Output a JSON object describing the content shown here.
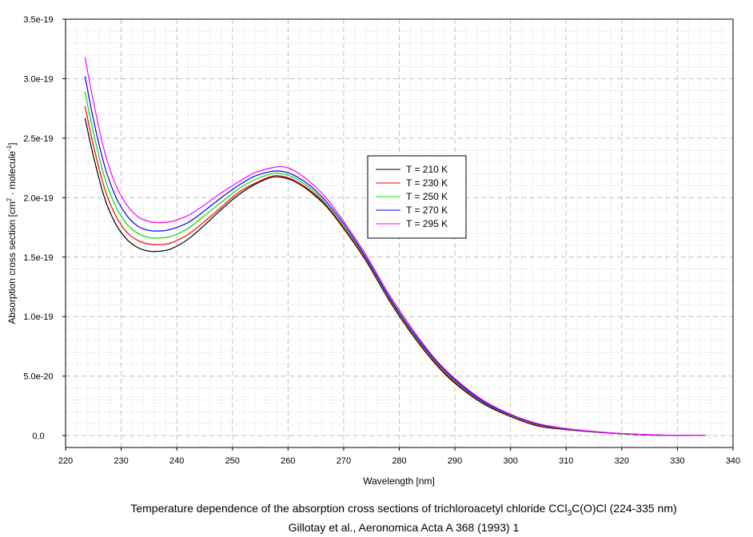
{
  "chart_data": {
    "type": "line",
    "title": "Temperature dependence of the absorption cross sections of trichloroacetyl chloride CCl3C(O)Cl (224-335 nm)",
    "title_parts": {
      "pre": "Temperature dependence of the absorption cross sections of trichloroacetyl chloride CCl",
      "sub": "3",
      "post": "C(O)Cl (224-335 nm)"
    },
    "subtitle": "Gillotay et al., Aeronomica Acta A 368 (1993) 1",
    "xlabel": "Wavelength [nm]",
    "ylabel": "Absorption cross section [cm2 · molecule-1]",
    "ylabel_parts": {
      "a": "Absorption cross section [cm",
      "sup1": "2",
      "b": " · molecule",
      "sup2": "-1",
      "c": "]"
    },
    "xlim": [
      220,
      340
    ],
    "ylim": [
      -1e-20,
      3.5e-19
    ],
    "xticks": [
      "220",
      "230",
      "240",
      "250",
      "260",
      "270",
      "280",
      "290",
      "300",
      "310",
      "320",
      "330",
      "340"
    ],
    "xtick_values": [
      220,
      230,
      240,
      250,
      260,
      270,
      280,
      290,
      300,
      310,
      320,
      330,
      340
    ],
    "yticks": [
      "0.0",
      "5.0e-20",
      "1.0e-19",
      "1.5e-19",
      "2.0e-19",
      "2.5e-19",
      "3.0e-19",
      "3.5e-19"
    ],
    "ytick_values": [
      0,
      5e-20,
      1e-19,
      1.5e-19,
      2e-19,
      2.5e-19,
      3e-19,
      3.5e-19
    ],
    "grid": {
      "major": "dashed",
      "minor": "dotted",
      "x_minor_step": 2,
      "y_minor_step": 1e-20
    },
    "legend_placement": "center",
    "x": [
      223.5,
      225,
      227,
      229,
      231,
      233,
      235,
      237,
      239,
      242,
      245,
      248,
      251,
      254,
      257,
      259,
      261,
      264,
      267,
      270,
      274,
      278,
      282,
      286,
      290,
      295,
      300,
      305,
      310,
      315,
      320,
      325,
      330,
      335
    ],
    "series": [
      {
        "name": "T = 210 K",
        "color": "#000000",
        "values": [
          2.67e-19,
          2.35e-19,
          2e-19,
          1.78e-19,
          1.65e-19,
          1.58e-19,
          1.55e-19,
          1.55e-19,
          1.57e-19,
          1.65e-19,
          1.77e-19,
          1.9e-19,
          2.02e-19,
          2.11e-19,
          2.17e-19,
          2.17e-19,
          2.14e-19,
          2.05e-19,
          1.92e-19,
          1.74e-19,
          1.47e-19,
          1.15e-19,
          8.7e-20,
          6.3e-20,
          4.4e-20,
          2.7e-20,
          1.6e-20,
          8e-21,
          5e-21,
          3e-21,
          1.5e-21,
          5e-22,
          2e-22,
          1e-22
        ]
      },
      {
        "name": "T = 230 K",
        "color": "#ff0000",
        "values": [
          2.77e-19,
          2.44e-19,
          2.08e-19,
          1.85e-19,
          1.71e-19,
          1.64e-19,
          1.61e-19,
          1.605e-19,
          1.62e-19,
          1.69e-19,
          1.8e-19,
          1.92e-19,
          2.04e-19,
          2.12e-19,
          2.18e-19,
          2.18e-19,
          2.15e-19,
          2.06e-19,
          1.93e-19,
          1.75e-19,
          1.48e-19,
          1.16e-19,
          8.8e-20,
          6.4e-20,
          4.5e-20,
          2.8e-20,
          1.65e-20,
          8.5e-21,
          5.2e-21,
          3.1e-21,
          1.6e-21,
          6e-22,
          2e-22,
          1e-22
        ]
      },
      {
        "name": "T = 250 K",
        "color": "#00dd00",
        "values": [
          2.89e-19,
          2.55e-19,
          2.17e-19,
          1.93e-19,
          1.78e-19,
          1.7e-19,
          1.665e-19,
          1.66e-19,
          1.675e-19,
          1.74e-19,
          1.85e-19,
          1.96e-19,
          2.07e-19,
          2.15e-19,
          2.2e-19,
          2.2e-19,
          2.17e-19,
          2.08e-19,
          1.94e-19,
          1.76e-19,
          1.49e-19,
          1.17e-19,
          8.9e-20,
          6.5e-20,
          4.6e-20,
          2.85e-20,
          1.7e-20,
          9e-21,
          5.5e-21,
          3.2e-21,
          1.7e-21,
          6e-22,
          2e-22,
          1e-22
        ]
      },
      {
        "name": "T = 270 K",
        "color": "#0000ff",
        "values": [
          3.02e-19,
          2.66e-19,
          2.27e-19,
          2.01e-19,
          1.85e-19,
          1.76e-19,
          1.725e-19,
          1.72e-19,
          1.735e-19,
          1.79e-19,
          1.89e-19,
          2e-19,
          2.1e-19,
          2.18e-19,
          2.22e-19,
          2.22e-19,
          2.19e-19,
          2.1e-19,
          1.96e-19,
          1.78e-19,
          1.5e-19,
          1.18e-19,
          9e-20,
          6.6e-20,
          4.7e-20,
          2.9e-20,
          1.75e-20,
          9.5e-21,
          5.7e-21,
          3.3e-21,
          1.7e-21,
          7e-22,
          2e-22,
          1e-22
        ]
      },
      {
        "name": "T = 295 K",
        "color": "#ff00ff",
        "values": [
          3.18e-19,
          2.81e-19,
          2.39e-19,
          2.11e-19,
          1.94e-19,
          1.84e-19,
          1.8e-19,
          1.79e-19,
          1.8e-19,
          1.85e-19,
          1.94e-19,
          2.04e-19,
          2.13e-19,
          2.21e-19,
          2.25e-19,
          2.26e-19,
          2.23e-19,
          2.13e-19,
          1.99e-19,
          1.8e-19,
          1.52e-19,
          1.2e-19,
          9.2e-20,
          6.7e-20,
          4.8e-20,
          3e-20,
          1.8e-20,
          1e-20,
          6e-21,
          3.5e-21,
          1.8e-21,
          8e-22,
          3e-22,
          1e-22
        ]
      }
    ]
  }
}
